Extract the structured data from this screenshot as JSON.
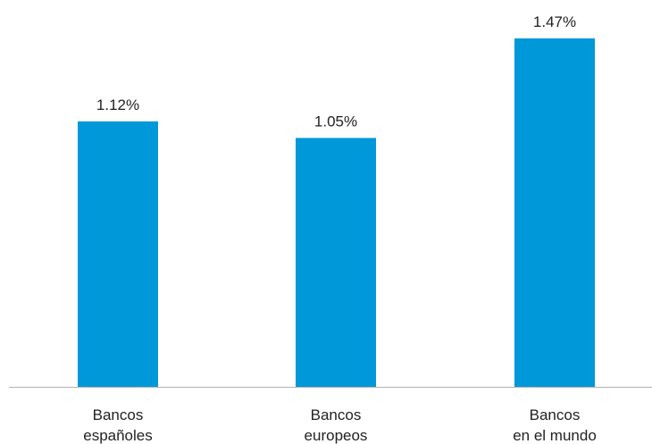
{
  "chart_data": {
    "type": "bar",
    "categories": [
      [
        "Bancos",
        "españoles"
      ],
      [
        "Bancos",
        "europeos"
      ],
      [
        "Bancos",
        "en el mundo"
      ]
    ],
    "values": [
      1.12,
      1.05,
      1.47
    ],
    "value_labels": [
      "1.12%",
      "1.05%",
      "1.47%"
    ],
    "unit": "%",
    "ylim": [
      0,
      1.47
    ],
    "grid": false,
    "bar_color": "#0098D9",
    "axis_color": "#B3B3B3"
  }
}
